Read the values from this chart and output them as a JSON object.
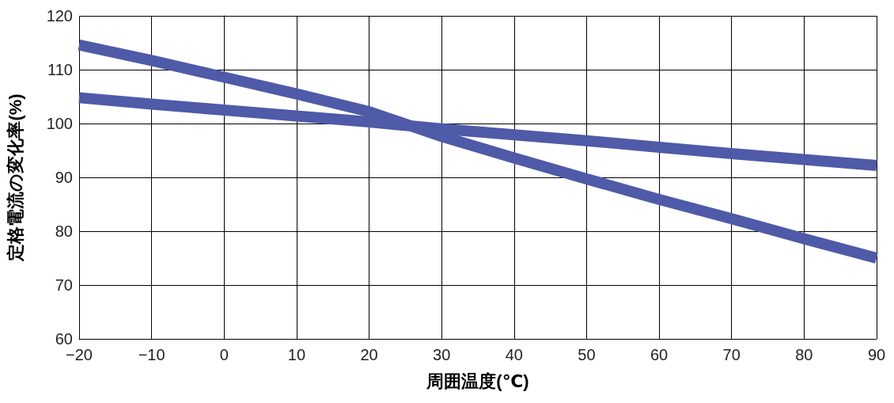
{
  "chart_data": {
    "type": "line",
    "xlabel": "周囲温度(℃)",
    "ylabel": "定格電流の変化率(%)",
    "x": [
      -20,
      -10,
      0,
      10,
      20,
      30,
      40,
      50,
      60,
      70,
      80,
      90
    ],
    "series": [
      {
        "color": "#4f5aa8",
        "values": [
          104.8,
          103.6,
          102.5,
          101.4,
          100.3,
          99,
          97.9,
          96.8,
          95.6,
          94.4,
          93.3,
          92.2
        ]
      },
      {
        "color": "#4f5aa8",
        "values": [
          114.6,
          111.7,
          108.6,
          105.5,
          102.2,
          97.6,
          93.6,
          89.7,
          85.9,
          82.3,
          78.6,
          75
        ]
      }
    ],
    "xlim": [
      -20,
      90
    ],
    "xticks": [
      -20,
      -10,
      0,
      10,
      20,
      30,
      40,
      50,
      60,
      70,
      80,
      90
    ],
    "ylim": [
      60,
      120
    ],
    "yticks": [
      60,
      70,
      80,
      90,
      100,
      110,
      120
    ],
    "grid": true,
    "marker": "none",
    "line_style": "solid"
  }
}
